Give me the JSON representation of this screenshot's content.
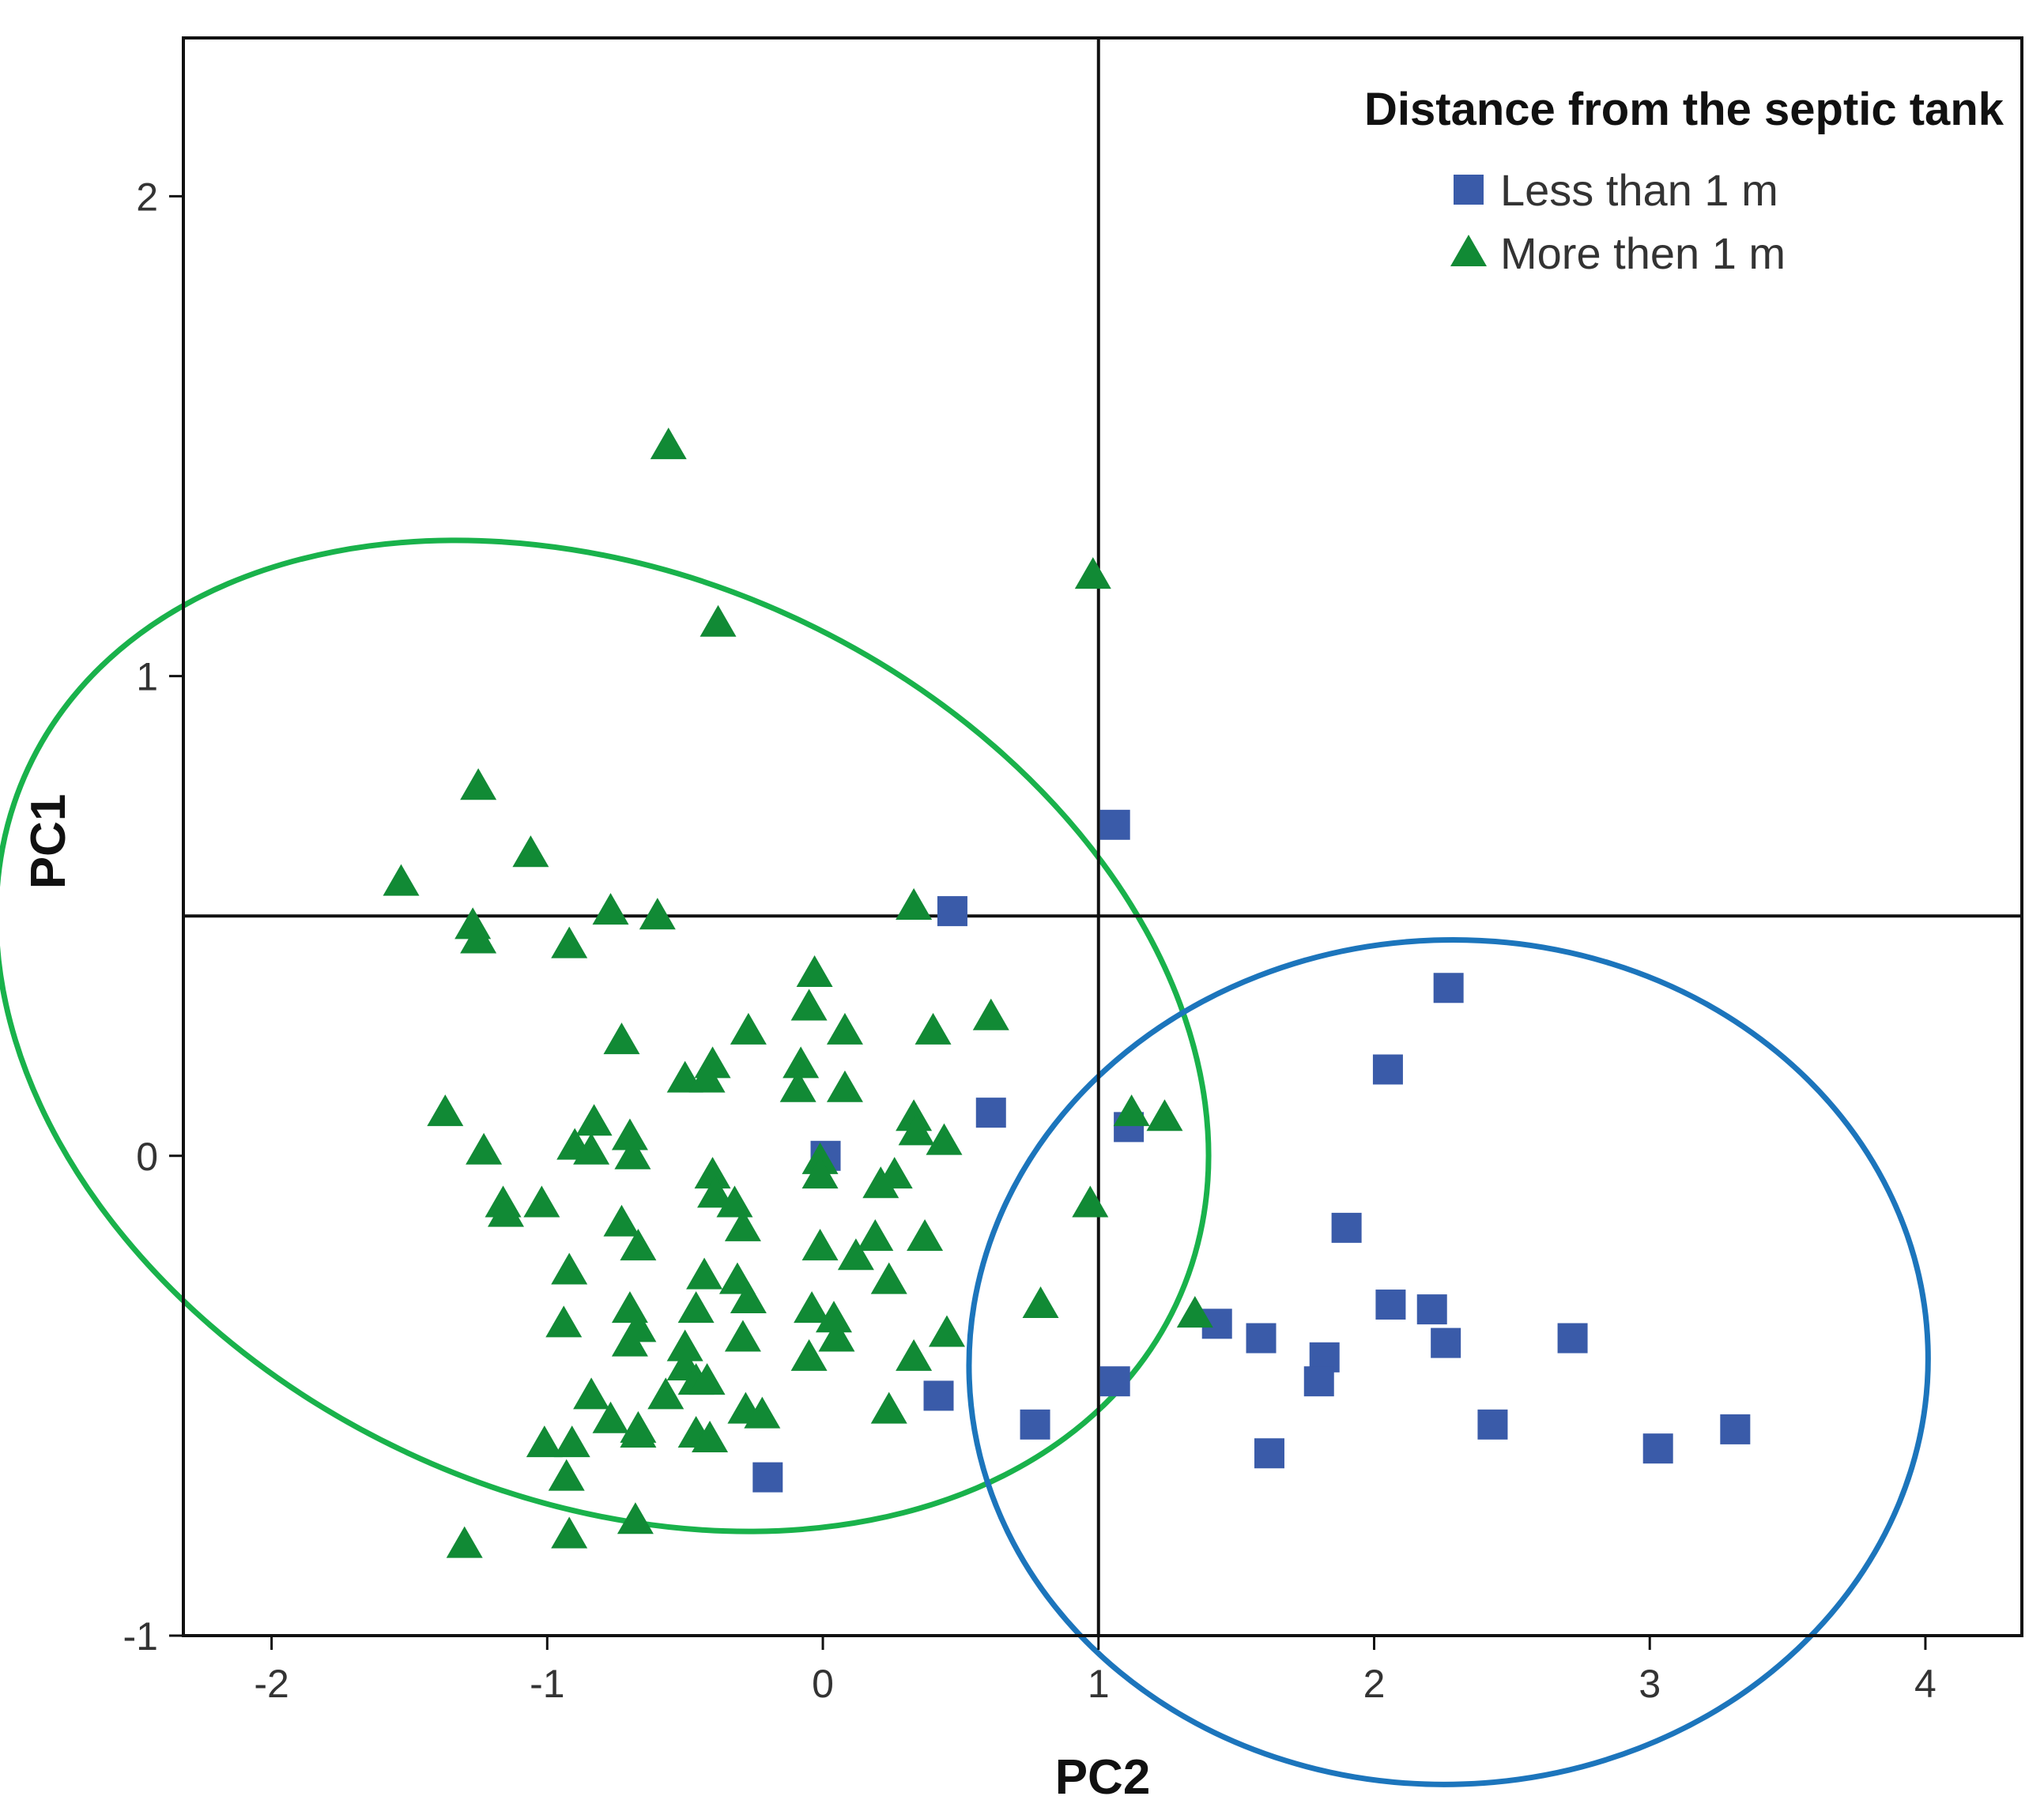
{
  "chart_data": {
    "type": "scatter",
    "title": "",
    "xlabel": "PC2",
    "ylabel": "PC1",
    "xlim": [
      -2.32,
      4.35
    ],
    "ylim": [
      -1.0,
      2.33
    ],
    "xticks": [
      -2,
      -1,
      0,
      1,
      2,
      3,
      4
    ],
    "yticks": [
      -1,
      0,
      1,
      2
    ],
    "reference_lines": {
      "x": 1.0,
      "y": 0.5
    },
    "legend": {
      "title": "Distance from the septic tank",
      "placement": "top-right"
    },
    "series": [
      {
        "name": "Less than 1 m",
        "marker": "square",
        "color": "#3A5BA9",
        "points": [
          [
            1.06,
            0.69
          ],
          [
            0.47,
            0.51
          ],
          [
            2.27,
            0.35
          ],
          [
            2.05,
            0.18
          ],
          [
            0.61,
            0.09
          ],
          [
            1.11,
            0.06
          ],
          [
            0.01,
            0.0
          ],
          [
            1.9,
            -0.15
          ],
          [
            2.06,
            -0.31
          ],
          [
            2.21,
            -0.32
          ],
          [
            2.26,
            -0.39
          ],
          [
            2.72,
            -0.38
          ],
          [
            1.43,
            -0.35
          ],
          [
            1.59,
            -0.38
          ],
          [
            1.82,
            -0.42
          ],
          [
            1.8,
            -0.47
          ],
          [
            1.06,
            -0.47
          ],
          [
            0.42,
            -0.5
          ],
          [
            0.77,
            -0.56
          ],
          [
            2.43,
            -0.56
          ],
          [
            3.31,
            -0.57
          ],
          [
            3.03,
            -0.61
          ],
          [
            1.62,
            -0.62
          ],
          [
            -0.2,
            -0.67
          ]
        ]
      },
      {
        "name": "More then 1 m",
        "marker": "triangle",
        "color": "#118A35",
        "points": [
          [
            -0.56,
            1.48
          ],
          [
            0.98,
            1.21
          ],
          [
            -0.38,
            1.11
          ],
          [
            -1.25,
            0.77
          ],
          [
            -1.06,
            0.63
          ],
          [
            -1.53,
            0.57
          ],
          [
            -1.27,
            0.48
          ],
          [
            -1.25,
            0.45
          ],
          [
            -0.92,
            0.44
          ],
          [
            -0.77,
            0.51
          ],
          [
            -0.6,
            0.5
          ],
          [
            0.33,
            0.52
          ],
          [
            -0.03,
            0.38
          ],
          [
            -0.05,
            0.31
          ],
          [
            0.61,
            0.29
          ],
          [
            -0.27,
            0.26
          ],
          [
            0.08,
            0.26
          ],
          [
            0.4,
            0.26
          ],
          [
            -0.73,
            0.24
          ],
          [
            -0.4,
            0.19
          ],
          [
            -0.5,
            0.16
          ],
          [
            -0.42,
            0.16
          ],
          [
            -0.08,
            0.19
          ],
          [
            -0.09,
            0.14
          ],
          [
            0.08,
            0.14
          ],
          [
            -1.37,
            0.09
          ],
          [
            -0.83,
            0.07
          ],
          [
            -0.7,
            0.04
          ],
          [
            -0.9,
            0.02
          ],
          [
            0.33,
            0.08
          ],
          [
            0.34,
            0.05
          ],
          [
            0.44,
            0.03
          ],
          [
            1.12,
            0.09
          ],
          [
            1.24,
            0.08
          ],
          [
            -1.23,
            0.01
          ],
          [
            -0.84,
            0.01
          ],
          [
            -0.69,
            0.0
          ],
          [
            -0.01,
            -0.01
          ],
          [
            -0.01,
            -0.04
          ],
          [
            0.26,
            -0.04
          ],
          [
            0.21,
            -0.06
          ],
          [
            -0.4,
            -0.04
          ],
          [
            -0.39,
            -0.08
          ],
          [
            -0.32,
            -0.1
          ],
          [
            -0.29,
            -0.15
          ],
          [
            -1.16,
            -0.1
          ],
          [
            -1.02,
            -0.1
          ],
          [
            -1.15,
            -0.12
          ],
          [
            0.97,
            -0.1
          ],
          [
            -0.73,
            -0.14
          ],
          [
            -0.67,
            -0.19
          ],
          [
            -0.01,
            -0.19
          ],
          [
            0.19,
            -0.17
          ],
          [
            0.37,
            -0.17
          ],
          [
            0.12,
            -0.21
          ],
          [
            -0.92,
            -0.24
          ],
          [
            -0.43,
            -0.25
          ],
          [
            -0.31,
            -0.26
          ],
          [
            0.24,
            -0.26
          ],
          [
            -0.27,
            -0.3
          ],
          [
            -0.46,
            -0.32
          ],
          [
            -0.7,
            -0.32
          ],
          [
            -0.04,
            -0.32
          ],
          [
            0.04,
            -0.34
          ],
          [
            0.79,
            -0.31
          ],
          [
            1.35,
            -0.33
          ],
          [
            -0.94,
            -0.35
          ],
          [
            -0.67,
            -0.36
          ],
          [
            -0.7,
            -0.39
          ],
          [
            -0.29,
            -0.38
          ],
          [
            -0.5,
            -0.4
          ],
          [
            0.05,
            -0.38
          ],
          [
            -0.05,
            -0.42
          ],
          [
            0.45,
            -0.37
          ],
          [
            0.33,
            -0.42
          ],
          [
            -0.5,
            -0.44
          ],
          [
            -0.46,
            -0.47
          ],
          [
            -0.42,
            -0.47
          ],
          [
            -0.57,
            -0.5
          ],
          [
            -0.84,
            -0.5
          ],
          [
            -0.28,
            -0.53
          ],
          [
            -0.22,
            -0.54
          ],
          [
            0.24,
            -0.53
          ],
          [
            -0.77,
            -0.55
          ],
          [
            -0.67,
            -0.57
          ],
          [
            -0.46,
            -0.58
          ],
          [
            -0.41,
            -0.59
          ],
          [
            -1.01,
            -0.6
          ],
          [
            -0.91,
            -0.6
          ],
          [
            -0.67,
            -0.58
          ],
          [
            -0.93,
            -0.67
          ],
          [
            -0.68,
            -0.76
          ],
          [
            -0.92,
            -0.79
          ],
          [
            -1.3,
            -0.81
          ]
        ]
      }
    ],
    "ellipses": [
      {
        "series": "More then 1 m",
        "color": "#19B24B",
        "center": [
          -0.8,
          0.25
        ],
        "radii": [
          1.67,
          1.32
        ],
        "angle_deg": 65
      },
      {
        "series": "Less than 1 m",
        "color": "#1C75BC",
        "center": [
          2.27,
          -0.43
        ],
        "radii": [
          1.74,
          0.88
        ],
        "angle_deg": 2
      }
    ]
  }
}
